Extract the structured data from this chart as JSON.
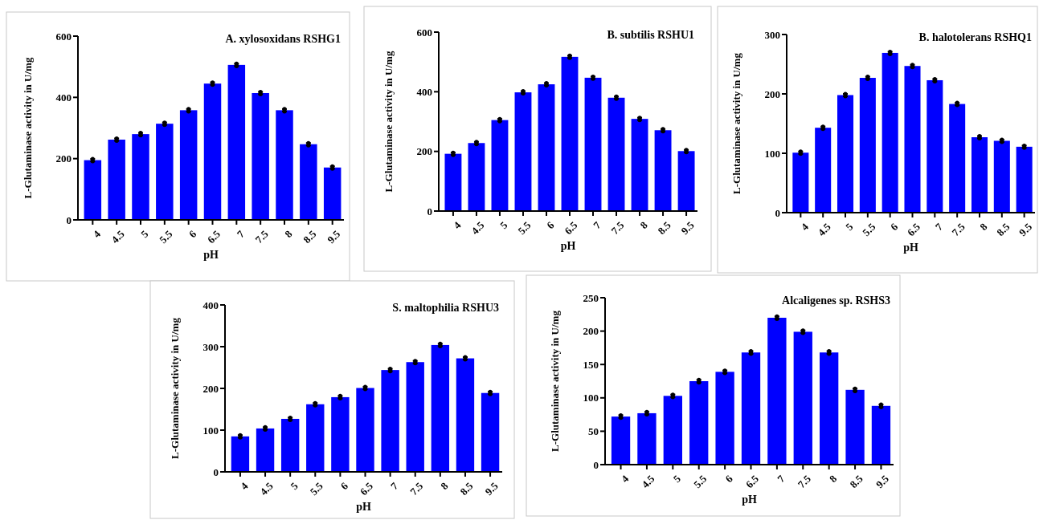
{
  "chart_data": [
    {
      "type": "bar",
      "title": "A. xylosoxidans RSHG1",
      "xlabel": "pH",
      "ylabel": "L-Glutaminase activity in U/mg",
      "categories": [
        "4",
        "4.5",
        "5",
        "5.5",
        "6",
        "6.5",
        "7",
        "7.5",
        "8",
        "8.5",
        "9.5"
      ],
      "values": [
        195,
        262,
        280,
        314,
        358,
        445,
        506,
        414,
        358,
        247,
        171
      ],
      "errors": [
        4,
        4,
        4,
        4,
        4,
        4,
        4,
        4,
        4,
        4,
        4
      ],
      "color": "#0000ff",
      "ylim": [
        0,
        600
      ],
      "yticks": [
        0,
        200,
        400,
        600
      ]
    },
    {
      "type": "bar",
      "title": "B. subtilis RSHU1",
      "xlabel": "pH",
      "ylabel": "L-Glutaminase activity in U/mg",
      "categories": [
        "4",
        "4.5",
        "5",
        "5.5",
        "6",
        "6.5",
        "7",
        "7.5",
        "8",
        "8.5",
        "9.5"
      ],
      "values": [
        192,
        228,
        305,
        398,
        425,
        517,
        447,
        380,
        309,
        271,
        201
      ],
      "errors": [
        4,
        4,
        4,
        4,
        4,
        4,
        4,
        4,
        4,
        4,
        4
      ],
      "color": "#0000ff",
      "ylim": [
        0,
        600
      ],
      "yticks": [
        0,
        200,
        400,
        600
      ]
    },
    {
      "type": "bar",
      "title": "B. halotolerans RSHQ1",
      "xlabel": "pH",
      "ylabel": "L-Glutaminase activity in U/mg",
      "categories": [
        "4",
        "4.5",
        "5",
        "5.5",
        "6",
        "6.5",
        "7",
        "7.5",
        "8",
        "8.5",
        "9.5"
      ],
      "values": [
        101,
        143,
        198,
        227,
        269,
        247,
        223,
        183,
        127,
        121,
        111
      ],
      "errors": [
        2,
        2,
        2,
        2,
        2,
        2,
        2,
        2,
        2,
        2,
        2
      ],
      "color": "#0000ff",
      "ylim": [
        0,
        300
      ],
      "yticks": [
        0,
        100,
        200,
        300
      ]
    },
    {
      "type": "bar",
      "title": "S. maltophilia RSHU3",
      "xlabel": "pH",
      "ylabel": "L-Glutaminase activity in U/mg",
      "categories": [
        "4",
        "4.5",
        "5",
        "5.5",
        "6",
        "6.5",
        "7",
        "7.5",
        "8",
        "8.5",
        "9.5"
      ],
      "values": [
        85,
        104,
        127,
        162,
        179,
        201,
        244,
        263,
        304,
        272,
        189
      ],
      "errors": [
        3,
        3,
        3,
        3,
        3,
        3,
        3,
        3,
        3,
        3,
        3
      ],
      "color": "#0000ff",
      "ylim": [
        0,
        400
      ],
      "yticks": [
        0,
        100,
        200,
        300,
        400
      ]
    },
    {
      "type": "bar",
      "title": "Alcaligenes sp. RSHS3",
      "xlabel": "pH",
      "ylabel": "L-Glutaminase activity in U/mg",
      "categories": [
        "4",
        "4.5",
        "5",
        "5.5",
        "6",
        "6.5",
        "7",
        "7.5",
        "8",
        "8.5",
        "9.5"
      ],
      "values": [
        72,
        77,
        103,
        125,
        139,
        168,
        220,
        199,
        168,
        112,
        88
      ],
      "errors": [
        2,
        2,
        2,
        2,
        2,
        2,
        2,
        2,
        2,
        2,
        2
      ],
      "color": "#0000ff",
      "ylim": [
        0,
        250
      ],
      "yticks": [
        0,
        50,
        100,
        150,
        200,
        250
      ]
    }
  ]
}
